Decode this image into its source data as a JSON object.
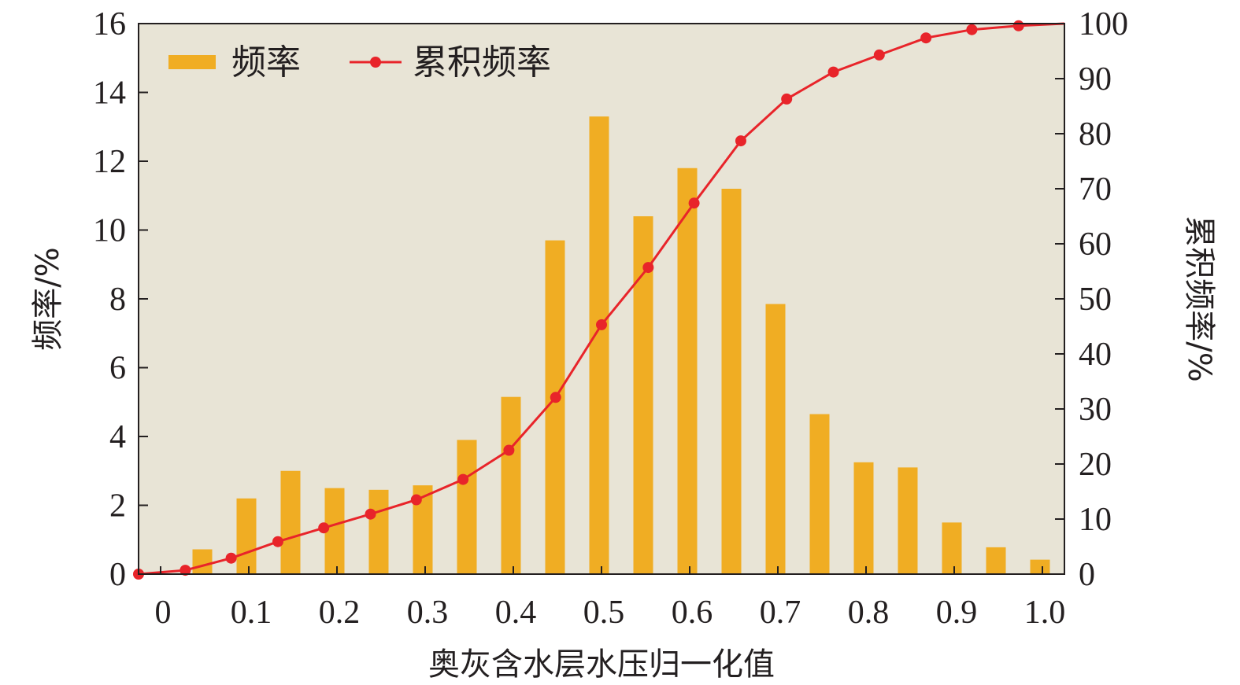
{
  "chart_data": {
    "type": "bar+line",
    "x_ticks": [
      "0",
      "0.1",
      "0.2",
      "0.3",
      "0.4",
      "0.5",
      "0.6",
      "0.7",
      "0.8",
      "0.9",
      "1.0"
    ],
    "xlabel": "奥灰含水层水压归一化值",
    "ylabel_left": "频率/%",
    "ylabel_right": "累积频率/%",
    "ylim_left": [
      0,
      16
    ],
    "ylim_right": [
      0,
      100
    ],
    "yticks_left": [
      "0",
      "2",
      "4",
      "6",
      "8",
      "10",
      "12",
      "14",
      "16"
    ],
    "yticks_right": [
      "0",
      "10",
      "20",
      "30",
      "40",
      "50",
      "60",
      "70",
      "80",
      "90",
      "100"
    ],
    "xlim": [
      -0.025,
      1.025
    ],
    "legend": {
      "position": "top-left",
      "bar_label": "频率",
      "line_label": "累积频率"
    },
    "series_bar": {
      "name": "频率",
      "x": [
        0.05,
        0.1,
        0.15,
        0.2,
        0.25,
        0.3,
        0.35,
        0.4,
        0.45,
        0.5,
        0.55,
        0.6,
        0.65,
        0.7,
        0.75,
        0.8,
        0.85,
        0.9,
        0.95,
        1.0
      ],
      "values": [
        0.72,
        2.2,
        3.0,
        2.5,
        2.45,
        2.58,
        3.9,
        5.15,
        9.7,
        13.3,
        10.4,
        11.8,
        11.2,
        7.85,
        4.65,
        3.25,
        3.1,
        1.5,
        0.78,
        0.42
      ]
    },
    "series_line": {
      "name": "累积频率",
      "x": [
        -0.025,
        0.028,
        0.08,
        0.133,
        0.185,
        0.238,
        0.29,
        0.343,
        0.395,
        0.448,
        0.5,
        0.553,
        0.605,
        0.658,
        0.71,
        0.763,
        0.815,
        0.868,
        0.92,
        0.973,
        1.025
      ],
      "values": [
        0,
        0.7,
        2.9,
        5.9,
        8.4,
        10.9,
        13.5,
        17.2,
        22.5,
        32.1,
        45.3,
        55.7,
        67.4,
        78.7,
        86.3,
        91.2,
        94.3,
        97.4,
        98.9,
        99.6,
        100
      ]
    },
    "colors": {
      "plot_background": "#e8e4d6",
      "bar": "#f0ad23",
      "line": "#e8242a",
      "axis": "#231f20"
    }
  }
}
